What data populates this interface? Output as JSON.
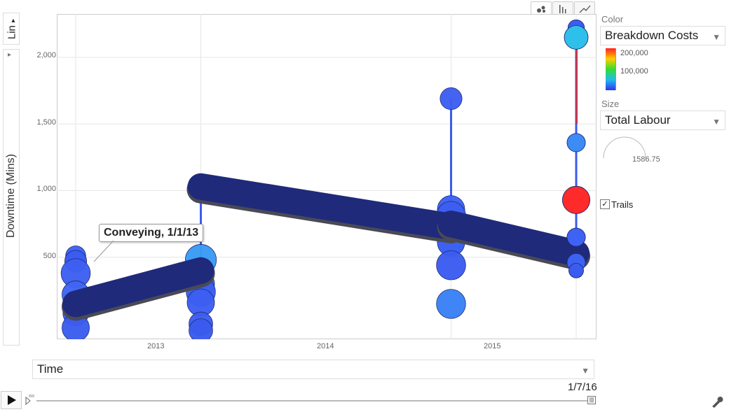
{
  "scale_button": {
    "label": "Lin",
    "arrow": "▸"
  },
  "y_axis": {
    "label": "Downtime (Mins)",
    "ticks": [
      "500",
      "1,000",
      "1,500",
      "2,000"
    ]
  },
  "x_axis": {
    "ticks": [
      "2013",
      "2014",
      "2015"
    ]
  },
  "chart_tabs": [
    {
      "name": "bubble-chart-tab",
      "icon": "bubbles-icon"
    },
    {
      "name": "bar-chart-tab",
      "icon": "bars-icon"
    },
    {
      "name": "line-chart-tab",
      "icon": "line-icon"
    }
  ],
  "tooltip": {
    "text": "Conveying, 1/1/13"
  },
  "color_control": {
    "label": "Color",
    "selected": "Breakdown Costs",
    "legend": {
      "high": "200,000",
      "mid": "100,000"
    },
    "gradient": [
      "#ff2222",
      "#ffcc00",
      "#33dd33",
      "#22bbee",
      "#3333ee"
    ]
  },
  "size_control": {
    "label": "Size",
    "selected": "Total Labour",
    "legend_value": "1586.75"
  },
  "trails": {
    "label": "Trails",
    "checked": true
  },
  "x_select": {
    "selected": "Time"
  },
  "playback": {
    "date": "1/7/16"
  },
  "colors": {
    "trail": "#1f2a7a",
    "grid": "#e6e6e6",
    "frame": "#cccccc"
  },
  "chart_data": {
    "type": "scatter",
    "xlabel": "",
    "ylabel": "Downtime (Mins)",
    "ylim": [
      0,
      2200
    ],
    "x_ticks": [
      "2013",
      "2014",
      "2015"
    ],
    "trails": [
      {
        "points": [
          [
            2013.0,
            150
          ],
          [
            2013.5,
            400
          ]
        ]
      },
      {
        "points": [
          [
            2013.5,
            1030
          ],
          [
            2014.5,
            730
          ]
        ]
      },
      {
        "points": [
          [
            2014.5,
            750
          ],
          [
            2015.0,
            530
          ]
        ]
      }
    ],
    "bubbles": [
      {
        "x": 2013.0,
        "y": 510,
        "color": "#3b63f5",
        "size": 0.55
      },
      {
        "x": 2013.0,
        "y": 470,
        "color": "#3b5cf0",
        "size": 0.6
      },
      {
        "x": 2013.0,
        "y": 380,
        "color": "#3e60f2",
        "size": 0.8
      },
      {
        "x": 2013.0,
        "y": 220,
        "color": "#3f66f4",
        "size": 0.75
      },
      {
        "x": 2013.0,
        "y": 80,
        "color": "#3a5bee",
        "size": 0.7
      },
      {
        "x": 2013.0,
        "y": -30,
        "color": "#3b5cef",
        "size": 0.75
      },
      {
        "x": 2013.5,
        "y": 480,
        "color": "#3a9cf5",
        "size": 0.85
      },
      {
        "x": 2013.5,
        "y": 380,
        "color": "#3d62f2",
        "size": 0.75
      },
      {
        "x": 2013.5,
        "y": 300,
        "color": "#3f5ef0",
        "size": 0.75
      },
      {
        "x": 2013.5,
        "y": 240,
        "color": "#3b5ff1",
        "size": 0.8
      },
      {
        "x": 2013.5,
        "y": 160,
        "color": "#3d5ef2",
        "size": 0.75
      },
      {
        "x": 2013.5,
        "y": 0,
        "color": "#3d5df0",
        "size": 0.65
      },
      {
        "x": 2013.5,
        "y": -50,
        "color": "#3a5bee",
        "size": 0.65
      },
      {
        "x": 2014.5,
        "y": 1690,
        "color": "#3e5ef2",
        "size": 0.6
      },
      {
        "x": 2014.5,
        "y": 860,
        "color": "#3d62f4",
        "size": 0.75
      },
      {
        "x": 2014.5,
        "y": 810,
        "color": "#3d5ff1",
        "size": 0.8
      },
      {
        "x": 2014.5,
        "y": 620,
        "color": "#3d60f2",
        "size": 0.75
      },
      {
        "x": 2014.5,
        "y": 610,
        "color": "#3d61f3",
        "size": 0.75
      },
      {
        "x": 2014.5,
        "y": 440,
        "color": "#3c5cf0",
        "size": 0.8
      },
      {
        "x": 2014.5,
        "y": 150,
        "color": "#3a82f5",
        "size": 0.8
      },
      {
        "x": 2015.0,
        "y": 2220,
        "color": "#3b5ef2",
        "size": 0.45
      },
      {
        "x": 2015.0,
        "y": 2150,
        "color": "#2ec0ea",
        "size": 0.65
      },
      {
        "x": 2015.0,
        "y": 1360,
        "color": "#3d8cf6",
        "size": 0.5
      },
      {
        "x": 2015.0,
        "y": 930,
        "color": "#ff2a2a",
        "size": 0.75
      },
      {
        "x": 2015.0,
        "y": 650,
        "color": "#3e62f3",
        "size": 0.5
      },
      {
        "x": 2015.0,
        "y": 460,
        "color": "#3d62f3",
        "size": 0.5
      },
      {
        "x": 2015.0,
        "y": 400,
        "color": "#3a5cef",
        "size": 0.4
      }
    ]
  }
}
